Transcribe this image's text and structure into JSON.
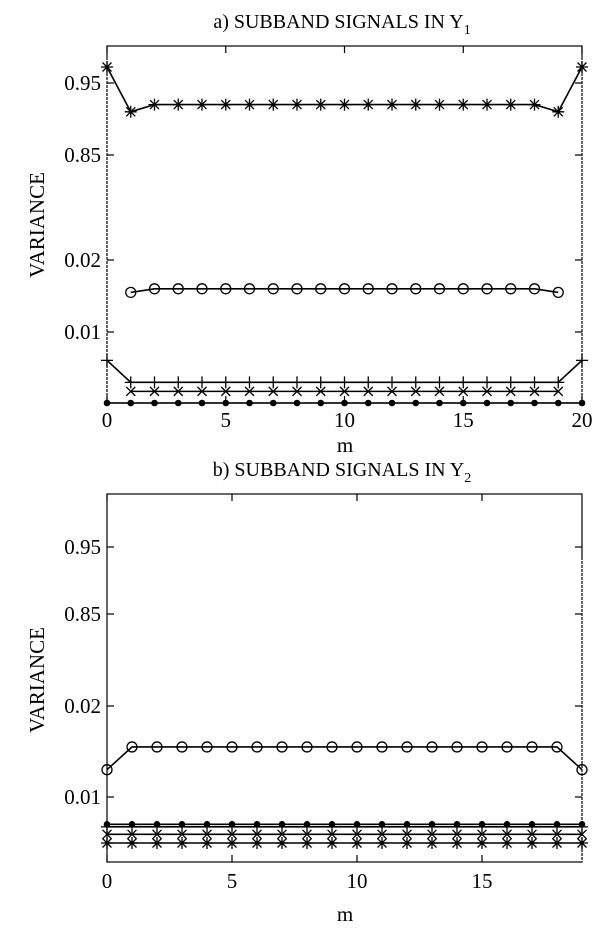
{
  "chart_data": [
    {
      "type": "line",
      "title": "a) SUBBAND SIGNALS IN Y",
      "title_sub": "1",
      "xlabel": "m",
      "ylabel": "VARIANCE",
      "xlim": [
        0,
        20
      ],
      "x_ticks": [
        "0",
        "5",
        "10",
        "15",
        "20"
      ],
      "y_ticks": [
        "0.95",
        "0.85",
        "0.02",
        "0.01"
      ],
      "grid": false,
      "series": [
        {
          "marker": "asterisk",
          "x": [
            0,
            1,
            2,
            3,
            4,
            5,
            6,
            7,
            8,
            9,
            10,
            11,
            12,
            13,
            14,
            15,
            16,
            17,
            18,
            19,
            20
          ],
          "values": [
            0.97,
            0.91,
            0.92,
            0.92,
            0.92,
            0.92,
            0.92,
            0.92,
            0.92,
            0.92,
            0.92,
            0.92,
            0.92,
            0.92,
            0.92,
            0.92,
            0.92,
            0.92,
            0.92,
            0.91,
            0.97
          ]
        },
        {
          "marker": "circle",
          "x": [
            1,
            2,
            3,
            4,
            5,
            6,
            7,
            8,
            9,
            10,
            11,
            12,
            13,
            14,
            15,
            16,
            17,
            18,
            19
          ],
          "values": [
            0.0155,
            0.016,
            0.016,
            0.016,
            0.016,
            0.016,
            0.016,
            0.016,
            0.016,
            0.016,
            0.016,
            0.016,
            0.016,
            0.016,
            0.016,
            0.016,
            0.016,
            0.016,
            0.0155
          ]
        },
        {
          "marker": "plus",
          "x": [
            0,
            1,
            2,
            3,
            4,
            5,
            6,
            7,
            8,
            9,
            10,
            11,
            12,
            13,
            14,
            15,
            16,
            17,
            18,
            19,
            20
          ],
          "values": [
            0.0078,
            0.0061,
            0.0061,
            0.0061,
            0.0061,
            0.0061,
            0.0061,
            0.0061,
            0.0061,
            0.0061,
            0.0061,
            0.0061,
            0.0061,
            0.0061,
            0.0061,
            0.0061,
            0.0061,
            0.0061,
            0.0061,
            0.0061,
            0.0078
          ]
        },
        {
          "marker": "x",
          "x": [
            1,
            2,
            3,
            4,
            5,
            6,
            7,
            8,
            9,
            10,
            11,
            12,
            13,
            14,
            15,
            16,
            17,
            18,
            19
          ],
          "values": [
            0.0054,
            0.0054,
            0.0054,
            0.0054,
            0.0054,
            0.0054,
            0.0054,
            0.0054,
            0.0054,
            0.0054,
            0.0054,
            0.0054,
            0.0054,
            0.0054,
            0.0054,
            0.0054,
            0.0054,
            0.0054,
            0.0054
          ]
        },
        {
          "marker": "dot",
          "x": [
            0,
            1,
            2,
            3,
            4,
            5,
            6,
            7,
            8,
            9,
            10,
            11,
            12,
            13,
            14,
            15,
            16,
            17,
            18,
            19,
            20
          ],
          "values": [
            0.0045,
            0.0045,
            0.0045,
            0.0045,
            0.0045,
            0.0045,
            0.0045,
            0.0045,
            0.0045,
            0.0045,
            0.0045,
            0.0045,
            0.0045,
            0.0045,
            0.0045,
            0.0045,
            0.0045,
            0.0045,
            0.0045,
            0.0045,
            0.0045
          ]
        }
      ]
    },
    {
      "type": "line",
      "title": "b) SUBBAND SIGNALS IN Y",
      "title_sub": "2",
      "xlabel": "m",
      "ylabel": "VARIANCE",
      "xlim": [
        0,
        19
      ],
      "x_ticks": [
        "0",
        "5",
        "10",
        "15"
      ],
      "y_ticks": [
        "0.95",
        "0.85",
        "0.02",
        "0.01"
      ],
      "grid": false,
      "series": [
        {
          "marker": "circle",
          "x": [
            0,
            1,
            2,
            3,
            4,
            5,
            6,
            7,
            8,
            9,
            10,
            11,
            12,
            13,
            14,
            15,
            16,
            17,
            18,
            19
          ],
          "values": [
            0.013,
            0.0155,
            0.0155,
            0.0155,
            0.0155,
            0.0155,
            0.0155,
            0.0155,
            0.0155,
            0.0155,
            0.0155,
            0.0155,
            0.0155,
            0.0155,
            0.0155,
            0.0155,
            0.0155,
            0.0155,
            0.0155,
            0.013
          ]
        },
        {
          "marker": "dot",
          "x": [
            0,
            1,
            2,
            3,
            4,
            5,
            6,
            7,
            8,
            9,
            10,
            11,
            12,
            13,
            14,
            15,
            16,
            17,
            18,
            19
          ],
          "values": [
            0.0078,
            0.0078,
            0.0078,
            0.0078,
            0.0078,
            0.0078,
            0.0078,
            0.0078,
            0.0078,
            0.0078,
            0.0078,
            0.0078,
            0.0078,
            0.0078,
            0.0078,
            0.0078,
            0.0078,
            0.0078,
            0.0078,
            0.0078
          ]
        },
        {
          "marker": "plus",
          "x": [
            0,
            1,
            2,
            3,
            4,
            5,
            6,
            7,
            8,
            9,
            10,
            11,
            12,
            13,
            14,
            15,
            16,
            17,
            18,
            19
          ],
          "values": [
            0.0076,
            0.0076,
            0.0076,
            0.0076,
            0.0076,
            0.0076,
            0.0076,
            0.0076,
            0.0076,
            0.0076,
            0.0076,
            0.0076,
            0.0076,
            0.0076,
            0.0076,
            0.0076,
            0.0076,
            0.0076,
            0.0076,
            0.0076
          ]
        },
        {
          "marker": "x",
          "x": [
            0,
            1,
            2,
            3,
            4,
            5,
            6,
            7,
            8,
            9,
            10,
            11,
            12,
            13,
            14,
            15,
            16,
            17,
            18,
            19
          ],
          "values": [
            0.007,
            0.007,
            0.007,
            0.007,
            0.007,
            0.007,
            0.007,
            0.007,
            0.007,
            0.007,
            0.007,
            0.007,
            0.007,
            0.007,
            0.007,
            0.007,
            0.007,
            0.007,
            0.007,
            0.007
          ]
        },
        {
          "marker": "asterisk",
          "x": [
            0,
            1,
            2,
            3,
            4,
            5,
            6,
            7,
            8,
            9,
            10,
            11,
            12,
            13,
            14,
            15,
            16,
            17,
            18,
            19
          ],
          "values": [
            0.0063,
            0.0063,
            0.0063,
            0.0063,
            0.0063,
            0.0063,
            0.0063,
            0.0063,
            0.0063,
            0.0063,
            0.0063,
            0.0063,
            0.0063,
            0.0063,
            0.0063,
            0.0063,
            0.0063,
            0.0063,
            0.0063,
            0.0063
          ]
        }
      ]
    }
  ]
}
